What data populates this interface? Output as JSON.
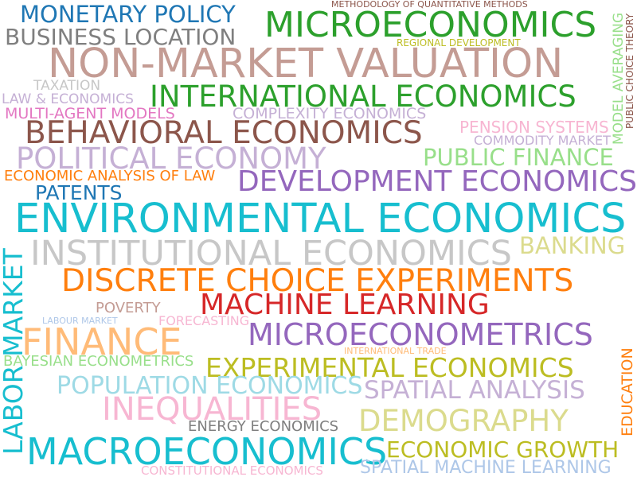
{
  "word_cloud": {
    "words": [
      {
        "text": "MONETARY POLICY",
        "color": "#1f77b4"
      },
      {
        "text": "MICROECONOMICS",
        "color": "#2ca02c"
      },
      {
        "text": "METHODOLOGY OF QUANTITATIVE METHODS",
        "color": "#8c564b"
      },
      {
        "text": "BUSINESS LOCATION",
        "color": "#7f7f7f"
      },
      {
        "text": "REGIONAL DEVELOPMENT",
        "color": "#bcbd22"
      },
      {
        "text": "NON-MARKET VALUATION",
        "color": "#c49c94"
      },
      {
        "text": "TAXATION",
        "color": "#c7c7c7"
      },
      {
        "text": "INTERNATIONAL ECONOMICS",
        "color": "#2ca02c"
      },
      {
        "text": "LAW & ECONOMICS",
        "color": "#c5b0d5"
      },
      {
        "text": "MULTI-AGENT MODELS",
        "color": "#e377c2"
      },
      {
        "text": "COMPLEXITY ECONOMICS",
        "color": "#c5b0d5"
      },
      {
        "text": "BEHAVIORAL ECONOMICS",
        "color": "#8c564b"
      },
      {
        "text": "PENSION SYSTEMS",
        "color": "#f7b6d2"
      },
      {
        "text": "COMMODITY MARKET",
        "color": "#c5b0d5"
      },
      {
        "text": "POLITICAL ECONOMY",
        "color": "#c5b0d5"
      },
      {
        "text": "PUBLIC FINANCE",
        "color": "#98df8a"
      },
      {
        "text": "ECONOMIC ANALYSIS OF LAW",
        "color": "#ff7f0e"
      },
      {
        "text": "DEVELOPMENT ECONOMICS",
        "color": "#9467bd"
      },
      {
        "text": "PATENTS",
        "color": "#1f77b4"
      },
      {
        "text": "ENVIRONMENTAL ECONOMICS",
        "color": "#17becf"
      },
      {
        "text": "INSTITUTIONAL ECONOMICS",
        "color": "#c7c7c7"
      },
      {
        "text": "BANKING",
        "color": "#dbdb8d"
      },
      {
        "text": "DISCRETE CHOICE EXPERIMENTS",
        "color": "#ff7f0e"
      },
      {
        "text": "MACHINE LEARNING",
        "color": "#d62728"
      },
      {
        "text": "POVERTY",
        "color": "#c49c94"
      },
      {
        "text": "LABOUR MARKET",
        "color": "#aec7e8"
      },
      {
        "text": "FORECASTING",
        "color": "#f7b6d2"
      },
      {
        "text": "MICROECONOMETRICS",
        "color": "#9467bd"
      },
      {
        "text": "FINANCE",
        "color": "#ffbb78"
      },
      {
        "text": "INTERNATIONAL TRADE",
        "color": "#ffbb78"
      },
      {
        "text": "BAYESIAN ECONOMETRICS",
        "color": "#98df8a"
      },
      {
        "text": "EXPERIMENTAL ECONOMICS",
        "color": "#bcbd22"
      },
      {
        "text": "POPULATION ECONOMICS",
        "color": "#9edae5"
      },
      {
        "text": "SPATIAL ANALYSIS",
        "color": "#c5b0d5"
      },
      {
        "text": "INEQUALITIES",
        "color": "#f7b6d2"
      },
      {
        "text": "DEMOGRAPHY",
        "color": "#dbdb8d"
      },
      {
        "text": "ENERGY ECONOMICS",
        "color": "#7f7f7f"
      },
      {
        "text": "MACROECONOMICS",
        "color": "#17becf"
      },
      {
        "text": "ECONOMIC GROWTH",
        "color": "#bcbd22"
      },
      {
        "text": "SPATIAL MACHINE LEARNING",
        "color": "#aec7e8"
      },
      {
        "text": "CONSTITUTIONAL ECONOMICS",
        "color": "#f7b6d2"
      },
      {
        "text": "LABOR MARKET",
        "color": "#17becf"
      },
      {
        "text": "MODEL AVERAGING",
        "color": "#98df8a"
      },
      {
        "text": "PUBLIC CHOICE THEORY",
        "color": "#8c564b"
      },
      {
        "text": "EDUCATION",
        "color": "#ff7f0e"
      }
    ]
  }
}
